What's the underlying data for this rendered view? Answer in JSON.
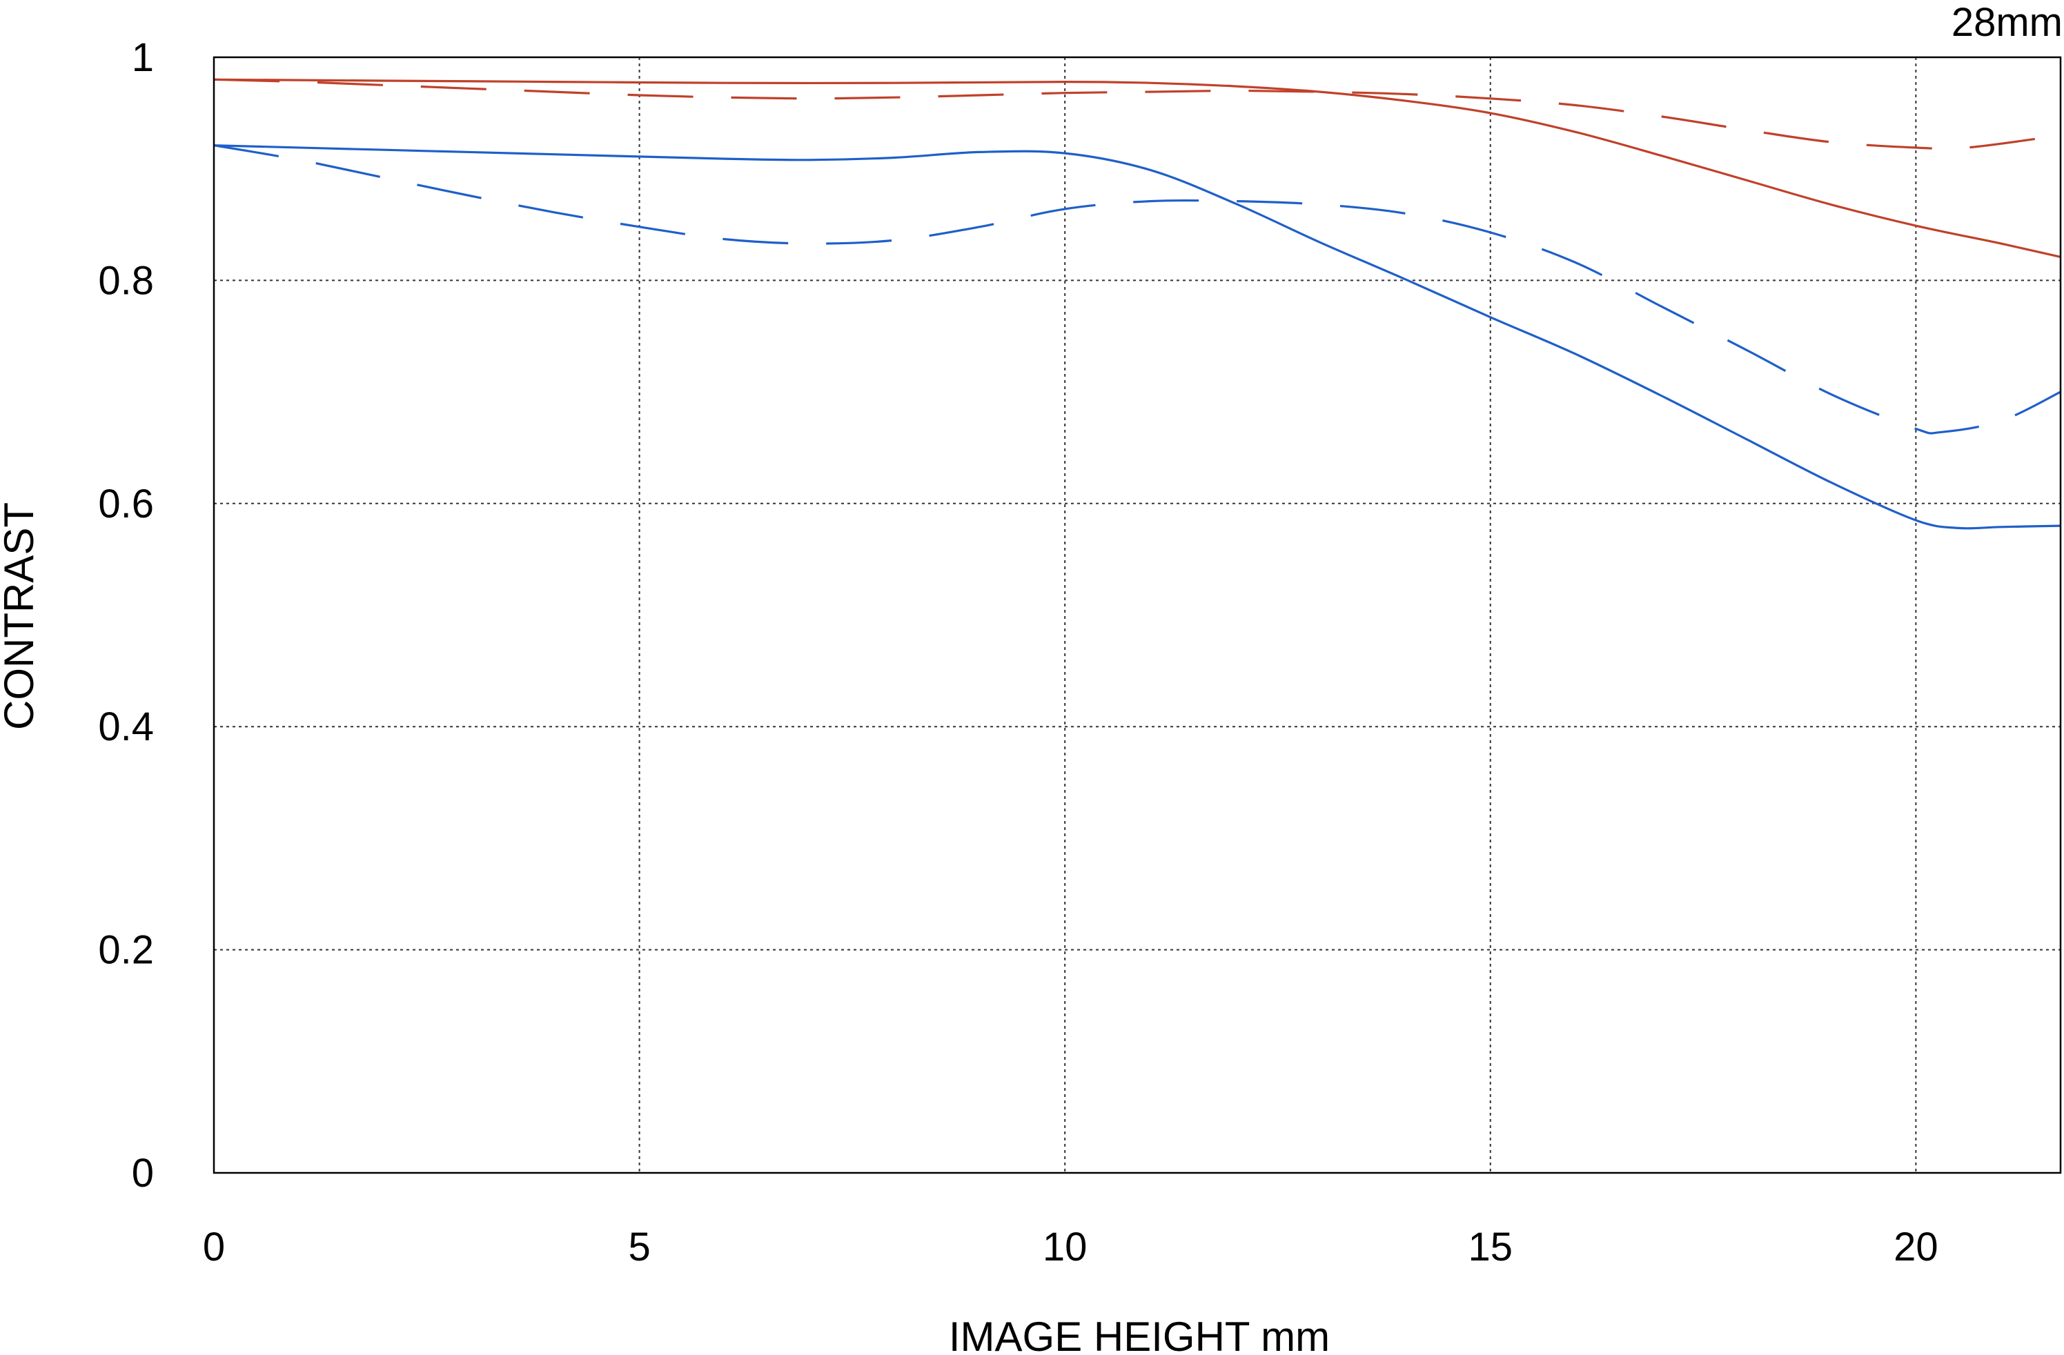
{
  "chart_data": {
    "type": "line",
    "title": "28mm",
    "xlabel": "IMAGE HEIGHT  mm",
    "ylabel": "CONTRAST",
    "xlim": [
      0,
      21.7
    ],
    "ylim": [
      0,
      1
    ],
    "x_ticks": [
      0,
      5,
      10,
      15,
      20
    ],
    "x_tick_labels": [
      "0",
      "5",
      "10",
      "15",
      "20"
    ],
    "y_ticks": [
      0,
      0.2,
      0.4,
      0.6,
      0.8,
      1
    ],
    "y_tick_labels": [
      "0",
      "0.2",
      "0.4",
      "0.6",
      "0.8",
      "1"
    ],
    "grid": true,
    "legend": "none",
    "series": [
      {
        "color": "#c0412a",
        "dash": "solid",
        "x": [
          0,
          2,
          4,
          6,
          8,
          10,
          11,
          12,
          13,
          14,
          15,
          16,
          17,
          18,
          19,
          20,
          21,
          21.7
        ],
        "y": [
          0.98,
          0.979,
          0.978,
          0.977,
          0.977,
          0.978,
          0.977,
          0.974,
          0.969,
          0.961,
          0.95,
          0.933,
          0.912,
          0.89,
          0.868,
          0.849,
          0.833,
          0.821
        ]
      },
      {
        "color": "#c0412a",
        "dash": "long-dash",
        "x": [
          0,
          1,
          2,
          3,
          4,
          5,
          6,
          7,
          8,
          9,
          10,
          11,
          12,
          13,
          14,
          15,
          16,
          17,
          18,
          19,
          20,
          20.6,
          21.7
        ],
        "y": [
          0.98,
          0.978,
          0.975,
          0.972,
          0.969,
          0.966,
          0.964,
          0.963,
          0.964,
          0.966,
          0.968,
          0.969,
          0.97,
          0.969,
          0.967,
          0.963,
          0.957,
          0.947,
          0.935,
          0.924,
          0.919,
          0.919,
          0.93
        ]
      },
      {
        "color": "#1f5fc9",
        "dash": "solid",
        "x": [
          0,
          2,
          4,
          6,
          7,
          8,
          9,
          10,
          11,
          12,
          13,
          14,
          15,
          16,
          17,
          18,
          19,
          20,
          20.5,
          21,
          21.7
        ],
        "y": [
          0.921,
          0.917,
          0.913,
          0.909,
          0.908,
          0.91,
          0.915,
          0.914,
          0.899,
          0.869,
          0.834,
          0.801,
          0.767,
          0.734,
          0.697,
          0.658,
          0.619,
          0.585,
          0.578,
          0.579,
          0.58
        ]
      },
      {
        "color": "#1f5fc9",
        "dash": "long-dash",
        "x": [
          0,
          1,
          2,
          3,
          4,
          5,
          6,
          7,
          8,
          9,
          10,
          11,
          12,
          13,
          14,
          15,
          16,
          17,
          18,
          19,
          20,
          20.3,
          21,
          21.7
        ],
        "y": [
          0.921,
          0.908,
          0.892,
          0.876,
          0.861,
          0.848,
          0.837,
          0.833,
          0.836,
          0.848,
          0.864,
          0.871,
          0.871,
          0.868,
          0.86,
          0.843,
          0.816,
          0.777,
          0.738,
          0.698,
          0.667,
          0.664,
          0.674,
          0.7
        ]
      }
    ]
  }
}
